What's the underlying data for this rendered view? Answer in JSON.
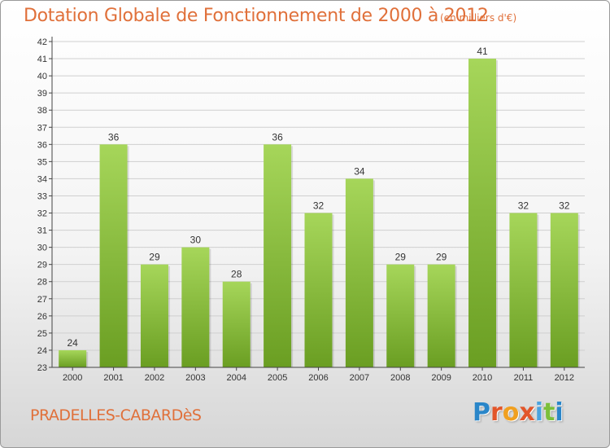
{
  "header": {
    "title": "Dotation Globale de Fonctionnement de 2000 à 2012",
    "subtitle": "(en milliers d'€)"
  },
  "footer": {
    "city": "PRADELLES-CABARDèS",
    "logo_letters": [
      {
        "ch": "P",
        "color": "#2a86c9"
      },
      {
        "ch": "r",
        "color": "#e2562a"
      },
      {
        "ch": "o",
        "color": "#f0a020"
      },
      {
        "ch": "x",
        "color": "#e2562a"
      },
      {
        "ch": "i",
        "color": "#4aa3df"
      },
      {
        "ch": "t",
        "color": "#7cbf3a"
      },
      {
        "ch": "i",
        "color": "#2a86c9"
      }
    ]
  },
  "colors": {
    "title": "#e0703a",
    "bar_light": "#a6d65a",
    "bar_dark": "#6a9e22",
    "grid": "#cfcfcf",
    "axis": "#444444"
  },
  "chart_data": {
    "type": "bar",
    "categories": [
      "2000",
      "2001",
      "2002",
      "2003",
      "2004",
      "2005",
      "2006",
      "2007",
      "2008",
      "2009",
      "2010",
      "2011",
      "2012"
    ],
    "values": [
      24,
      36,
      29,
      30,
      28,
      36,
      32,
      34,
      29,
      29,
      41,
      32,
      32
    ],
    "ylim": [
      23,
      42
    ],
    "yticks": [
      23,
      24,
      25,
      26,
      27,
      28,
      29,
      30,
      31,
      32,
      33,
      34,
      35,
      36,
      37,
      38,
      39,
      40,
      41,
      42
    ],
    "grid": true,
    "data_labels": true
  }
}
